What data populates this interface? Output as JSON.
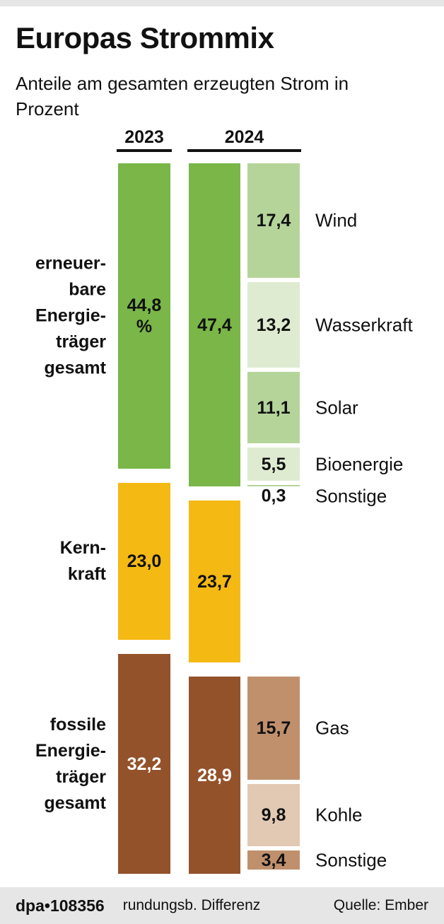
{
  "header": {
    "title": "Europas Strommix",
    "subtitle": "Anteile am gesamten erzeugten Strom in Prozent"
  },
  "footer": {
    "brand": "dpa•108356",
    "note": "rundungsb. Differenz",
    "source": "Quelle: Ember"
  },
  "chart_data": {
    "type": "bar",
    "stacked": true,
    "title": "Europas Strommix",
    "subtitle": "Anteile am gesamten erzeugten Strom in Prozent",
    "unit": "%",
    "categories": [
      "2023",
      "2024"
    ],
    "groups": [
      {
        "label": "erneuer-\nbare\nEnergie-\nträger\ngesamt",
        "color": "#7ab648",
        "values": {
          "2023": 44.8,
          "2024": 47.4
        },
        "value_labels": {
          "2023": "44,8\n%",
          "2024": "47,4"
        },
        "text_color": "#111111"
      },
      {
        "label": "Kern-\nkraft",
        "color": "#f5b914",
        "values": {
          "2023": 23.0,
          "2024": 23.7
        },
        "value_labels": {
          "2023": "23,0",
          "2024": "23,7"
        },
        "text_color": "#111111"
      },
      {
        "label": "fossile\nEnergie-\nträger\ngesamt",
        "color": "#94522a",
        "values": {
          "2023": 32.2,
          "2024": 28.9
        },
        "value_labels": {
          "2023": "32,2",
          "2024": "28,9"
        },
        "text_color": "#ffffff"
      }
    ],
    "breakdown_2024": [
      [
        {
          "name": "Wind",
          "value": 17.4,
          "label": "17,4",
          "color": "#b5d49a"
        },
        {
          "name": "Wasserkraft",
          "value": 13.2,
          "label": "13,2",
          "color": "#deebd0"
        },
        {
          "name": "Solar",
          "value": 11.1,
          "label": "11,1",
          "color": "#b5d49a"
        },
        {
          "name": "Bioenergie",
          "value": 5.5,
          "label": "5,5",
          "color": "#deebd0"
        },
        {
          "name": "Sonstige",
          "value": 0.3,
          "label": "0,3",
          "color": "#b5d49a"
        }
      ],
      [],
      [
        {
          "name": "Gas",
          "value": 15.7,
          "label": "15,7",
          "color": "#c0906d"
        },
        {
          "name": "Kohle",
          "value": 9.8,
          "label": "9,8",
          "color": "#e2c9b4"
        },
        {
          "name": "Sonstige",
          "value": 3.4,
          "label": "3,4",
          "color": "#c0906d"
        }
      ]
    ]
  }
}
